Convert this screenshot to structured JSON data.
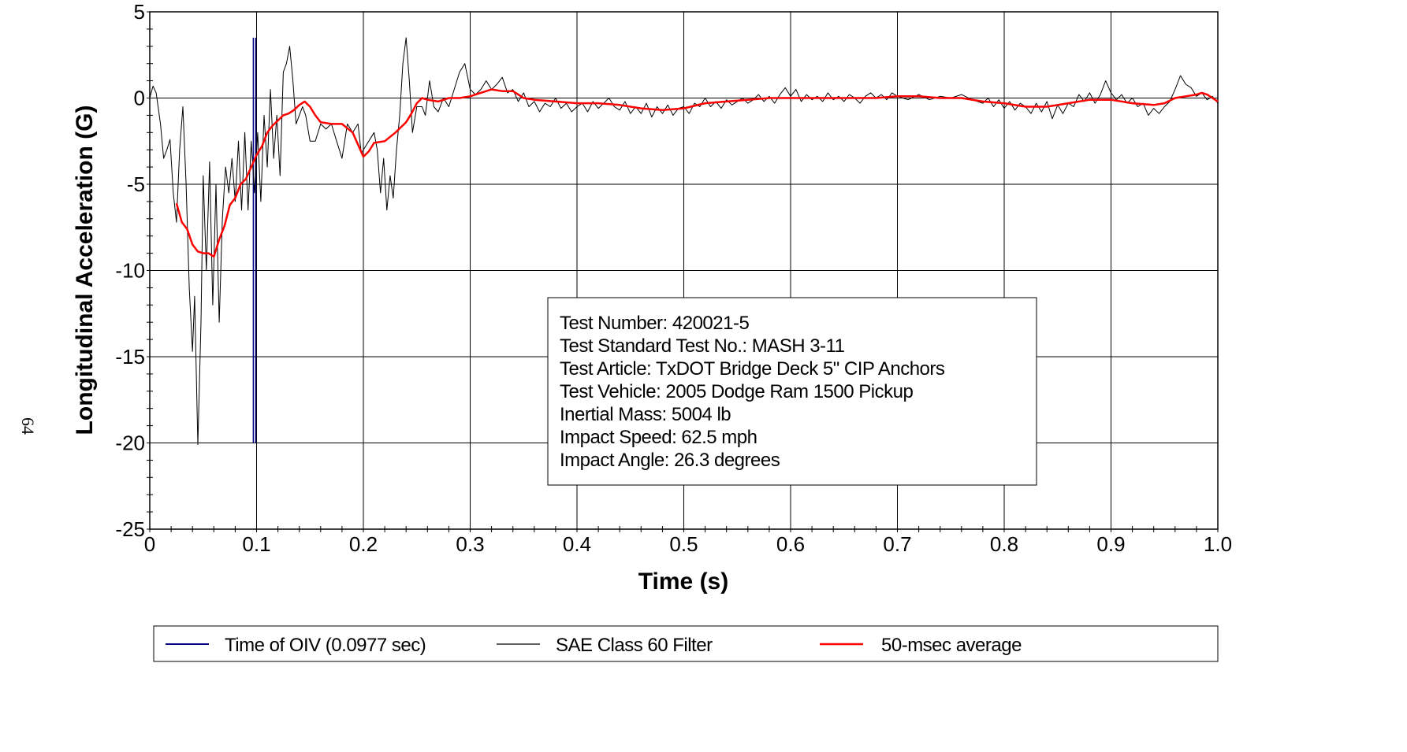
{
  "page_number": "64",
  "chart_data": {
    "type": "line",
    "xlabel": "Time (s)",
    "ylabel": "Longitudinal Acceleration (G)",
    "xlim": [
      0,
      1.0
    ],
    "ylim": [
      -25,
      5
    ],
    "x_ticks": [
      "0",
      "0.1",
      "0.2",
      "0.3",
      "0.4",
      "0.5",
      "0.6",
      "0.7",
      "0.8",
      "0.9",
      "1.0"
    ],
    "y_ticks": [
      "5",
      "0",
      "-5",
      "-10",
      "-15",
      "-20",
      "-25"
    ],
    "grid": true,
    "legend_position": "bottom",
    "series": [
      {
        "name": "Time of OIV (0.0977 sec)",
        "color": "#000080",
        "kind": "vertical-marker",
        "x": 0.0977,
        "y_range": [
          -20,
          3.5
        ]
      },
      {
        "name": "SAE Class 60 Filter",
        "color": "#000000",
        "points": [
          [
            0,
            0
          ],
          [
            0.003,
            0.7
          ],
          [
            0.006,
            0.3
          ],
          [
            0.01,
            -1.5
          ],
          [
            0.013,
            -3.5
          ],
          [
            0.016,
            -3.0
          ],
          [
            0.019,
            -2.4
          ],
          [
            0.022,
            -5.5
          ],
          [
            0.025,
            -7.2
          ],
          [
            0.028,
            -3
          ],
          [
            0.031,
            -0.5
          ],
          [
            0.034,
            -5
          ],
          [
            0.037,
            -11
          ],
          [
            0.04,
            -14.7
          ],
          [
            0.042,
            -11.5
          ],
          [
            0.045,
            -20.1
          ],
          [
            0.048,
            -13
          ],
          [
            0.05,
            -4.5
          ],
          [
            0.053,
            -10
          ],
          [
            0.056,
            -3.7
          ],
          [
            0.059,
            -12
          ],
          [
            0.062,
            -5
          ],
          [
            0.065,
            -13
          ],
          [
            0.068,
            -7
          ],
          [
            0.071,
            -4
          ],
          [
            0.074,
            -5.5
          ],
          [
            0.077,
            -3.5
          ],
          [
            0.08,
            -6
          ],
          [
            0.083,
            -2.5
          ],
          [
            0.086,
            -6.5
          ],
          [
            0.089,
            -2
          ],
          [
            0.092,
            -6.5
          ],
          [
            0.095,
            -2.5
          ],
          [
            0.098,
            -5.5
          ],
          [
            0.101,
            -2
          ],
          [
            0.104,
            -6
          ],
          [
            0.107,
            -1
          ],
          [
            0.11,
            -4
          ],
          [
            0.113,
            0.5
          ],
          [
            0.116,
            -3.5
          ],
          [
            0.119,
            -1
          ],
          [
            0.122,
            -4.5
          ],
          [
            0.125,
            1.5
          ],
          [
            0.128,
            2
          ],
          [
            0.131,
            3
          ],
          [
            0.134,
            1
          ],
          [
            0.137,
            -1.5
          ],
          [
            0.14,
            -1
          ],
          [
            0.143,
            -0.5
          ],
          [
            0.146,
            -1
          ],
          [
            0.15,
            -2.5
          ],
          [
            0.155,
            -2.5
          ],
          [
            0.16,
            -1.5
          ],
          [
            0.165,
            -1.8
          ],
          [
            0.17,
            -1.5
          ],
          [
            0.175,
            -2.5
          ],
          [
            0.18,
            -3.5
          ],
          [
            0.185,
            -1.5
          ],
          [
            0.19,
            -2
          ],
          [
            0.195,
            -1.5
          ],
          [
            0.198,
            -3.2
          ],
          [
            0.2,
            -3
          ],
          [
            0.205,
            -2.5
          ],
          [
            0.21,
            -2
          ],
          [
            0.213,
            -3
          ],
          [
            0.216,
            -5.5
          ],
          [
            0.219,
            -3.5
          ],
          [
            0.222,
            -6.5
          ],
          [
            0.225,
            -4.5
          ],
          [
            0.228,
            -5.8
          ],
          [
            0.231,
            -3
          ],
          [
            0.234,
            -1
          ],
          [
            0.237,
            2
          ],
          [
            0.24,
            3.5
          ],
          [
            0.243,
            1
          ],
          [
            0.246,
            -2
          ],
          [
            0.25,
            -0.5
          ],
          [
            0.255,
            -0.5
          ],
          [
            0.258,
            -1
          ],
          [
            0.262,
            1
          ],
          [
            0.266,
            -0.5
          ],
          [
            0.27,
            -0.8
          ],
          [
            0.275,
            0
          ],
          [
            0.28,
            -0.5
          ],
          [
            0.285,
            0.5
          ],
          [
            0.29,
            1.5
          ],
          [
            0.295,
            2
          ],
          [
            0.3,
            0.5
          ],
          [
            0.305,
            0.2
          ],
          [
            0.31,
            0.5
          ],
          [
            0.315,
            1
          ],
          [
            0.32,
            0.5
          ],
          [
            0.325,
            0.8
          ],
          [
            0.33,
            1.2
          ],
          [
            0.335,
            0.3
          ],
          [
            0.34,
            0.5
          ],
          [
            0.345,
            -0.2
          ],
          [
            0.35,
            0.3
          ],
          [
            0.355,
            -0.5
          ],
          [
            0.36,
            -0.2
          ],
          [
            0.365,
            -0.8
          ],
          [
            0.37,
            -0.3
          ],
          [
            0.375,
            -0.5
          ],
          [
            0.38,
            0
          ],
          [
            0.385,
            -0.6
          ],
          [
            0.39,
            -0.3
          ],
          [
            0.395,
            -0.8
          ],
          [
            0.4,
            -0.5
          ],
          [
            0.405,
            -0.3
          ],
          [
            0.41,
            -0.8
          ],
          [
            0.415,
            -0.2
          ],
          [
            0.42,
            -0.6
          ],
          [
            0.425,
            -0.3
          ],
          [
            0.43,
            0
          ],
          [
            0.435,
            -0.5
          ],
          [
            0.44,
            -0.7
          ],
          [
            0.445,
            -0.2
          ],
          [
            0.45,
            -0.9
          ],
          [
            0.455,
            -0.5
          ],
          [
            0.46,
            -0.9
          ],
          [
            0.465,
            -0.3
          ],
          [
            0.47,
            -1.1
          ],
          [
            0.475,
            -0.5
          ],
          [
            0.48,
            -0.9
          ],
          [
            0.485,
            -0.4
          ],
          [
            0.49,
            -1
          ],
          [
            0.495,
            -0.6
          ],
          [
            0.5,
            -0.5
          ],
          [
            0.505,
            -0.9
          ],
          [
            0.51,
            -0.3
          ],
          [
            0.515,
            -0.5
          ],
          [
            0.52,
            0
          ],
          [
            0.525,
            -0.5
          ],
          [
            0.53,
            -0.2
          ],
          [
            0.535,
            -0.6
          ],
          [
            0.54,
            -0.1
          ],
          [
            0.545,
            -0.4
          ],
          [
            0.55,
            -0.2
          ],
          [
            0.555,
            0
          ],
          [
            0.56,
            -0.3
          ],
          [
            0.565,
            -0.1
          ],
          [
            0.57,
            0.2
          ],
          [
            0.575,
            -0.2
          ],
          [
            0.58,
            0.1
          ],
          [
            0.585,
            -0.3
          ],
          [
            0.59,
            0.2
          ],
          [
            0.595,
            0.6
          ],
          [
            0.6,
            0.1
          ],
          [
            0.605,
            0.5
          ],
          [
            0.61,
            -0.2
          ],
          [
            0.615,
            0.2
          ],
          [
            0.62,
            -0.1
          ],
          [
            0.625,
            0.1
          ],
          [
            0.63,
            -0.2
          ],
          [
            0.635,
            0.3
          ],
          [
            0.64,
            -0.1
          ],
          [
            0.645,
            0.1
          ],
          [
            0.65,
            -0.2
          ],
          [
            0.655,
            0.2
          ],
          [
            0.66,
            0
          ],
          [
            0.665,
            -0.3
          ],
          [
            0.67,
            0.1
          ],
          [
            0.675,
            0.3
          ],
          [
            0.68,
            0
          ],
          [
            0.685,
            0.2
          ],
          [
            0.69,
            -0.1
          ],
          [
            0.695,
            0.3
          ],
          [
            0.7,
            0.1
          ],
          [
            0.71,
            -0.1
          ],
          [
            0.72,
            0.2
          ],
          [
            0.73,
            -0.1
          ],
          [
            0.74,
            0.1
          ],
          [
            0.75,
            0
          ],
          [
            0.76,
            0.2
          ],
          [
            0.77,
            -0.1
          ],
          [
            0.78,
            -0.3
          ],
          [
            0.785,
            0
          ],
          [
            0.79,
            -0.5
          ],
          [
            0.795,
            -0.1
          ],
          [
            0.8,
            -0.6
          ],
          [
            0.805,
            -0.2
          ],
          [
            0.81,
            -0.7
          ],
          [
            0.815,
            -0.3
          ],
          [
            0.82,
            -0.5
          ],
          [
            0.825,
            -0.9
          ],
          [
            0.83,
            -0.3
          ],
          [
            0.835,
            -0.8
          ],
          [
            0.84,
            -0.2
          ],
          [
            0.845,
            -1.2
          ],
          [
            0.85,
            -0.4
          ],
          [
            0.855,
            -0.9
          ],
          [
            0.86,
            -0.3
          ],
          [
            0.865,
            -0.5
          ],
          [
            0.87,
            0.2
          ],
          [
            0.875,
            -0.2
          ],
          [
            0.88,
            0.3
          ],
          [
            0.885,
            -0.3
          ],
          [
            0.89,
            0.2
          ],
          [
            0.895,
            1
          ],
          [
            0.9,
            0.3
          ],
          [
            0.905,
            -0.1
          ],
          [
            0.91,
            0.2
          ],
          [
            0.915,
            -0.3
          ],
          [
            0.92,
            0
          ],
          [
            0.925,
            -0.5
          ],
          [
            0.93,
            -0.3
          ],
          [
            0.935,
            -1
          ],
          [
            0.94,
            -0.6
          ],
          [
            0.945,
            -0.9
          ],
          [
            0.95,
            -0.5
          ],
          [
            0.955,
            -0.2
          ],
          [
            0.96,
            0.5
          ],
          [
            0.965,
            1.3
          ],
          [
            0.97,
            0.8
          ],
          [
            0.975,
            0.6
          ],
          [
            0.98,
            0.1
          ],
          [
            0.985,
            0.3
          ],
          [
            0.99,
            -0.1
          ],
          [
            0.995,
            0.1
          ],
          [
            1.0,
            -0.3
          ]
        ]
      },
      {
        "name": "50-msec average",
        "color": "#ff0000",
        "points": [
          [
            0.025,
            -6.1
          ],
          [
            0.03,
            -7.2
          ],
          [
            0.035,
            -7.6
          ],
          [
            0.04,
            -8.5
          ],
          [
            0.045,
            -8.9
          ],
          [
            0.05,
            -9.0
          ],
          [
            0.055,
            -9.0
          ],
          [
            0.06,
            -9.2
          ],
          [
            0.065,
            -8.2
          ],
          [
            0.07,
            -7.4
          ],
          [
            0.075,
            -6.2
          ],
          [
            0.08,
            -5.8
          ],
          [
            0.085,
            -5.0
          ],
          [
            0.09,
            -4.7
          ],
          [
            0.095,
            -4.0
          ],
          [
            0.1,
            -3.3
          ],
          [
            0.105,
            -2.8
          ],
          [
            0.11,
            -2.0
          ],
          [
            0.115,
            -1.6
          ],
          [
            0.12,
            -1.3
          ],
          [
            0.125,
            -1.0
          ],
          [
            0.13,
            -0.9
          ],
          [
            0.135,
            -0.7
          ],
          [
            0.14,
            -0.4
          ],
          [
            0.145,
            -0.2
          ],
          [
            0.15,
            -0.5
          ],
          [
            0.155,
            -1.0
          ],
          [
            0.16,
            -1.4
          ],
          [
            0.17,
            -1.5
          ],
          [
            0.18,
            -1.5
          ],
          [
            0.19,
            -2.0
          ],
          [
            0.195,
            -2.7
          ],
          [
            0.2,
            -3.4
          ],
          [
            0.205,
            -3.1
          ],
          [
            0.21,
            -2.6
          ],
          [
            0.22,
            -2.5
          ],
          [
            0.23,
            -2.0
          ],
          [
            0.24,
            -1.4
          ],
          [
            0.245,
            -0.9
          ],
          [
            0.25,
            -0.3
          ],
          [
            0.255,
            0
          ],
          [
            0.26,
            -0.1
          ],
          [
            0.27,
            -0.2
          ],
          [
            0.28,
            0
          ],
          [
            0.29,
            0
          ],
          [
            0.3,
            0.1
          ],
          [
            0.31,
            0.3
          ],
          [
            0.32,
            0.5
          ],
          [
            0.33,
            0.4
          ],
          [
            0.34,
            0.4
          ],
          [
            0.345,
            0.2
          ],
          [
            0.35,
            0
          ],
          [
            0.36,
            -0.1
          ],
          [
            0.38,
            -0.2
          ],
          [
            0.4,
            -0.3
          ],
          [
            0.42,
            -0.3
          ],
          [
            0.44,
            -0.4
          ],
          [
            0.46,
            -0.6
          ],
          [
            0.48,
            -0.7
          ],
          [
            0.5,
            -0.6
          ],
          [
            0.52,
            -0.3
          ],
          [
            0.54,
            -0.2
          ],
          [
            0.56,
            -0.1
          ],
          [
            0.58,
            0
          ],
          [
            0.6,
            0
          ],
          [
            0.62,
            0
          ],
          [
            0.64,
            0
          ],
          [
            0.66,
            0
          ],
          [
            0.68,
            0
          ],
          [
            0.7,
            0.1
          ],
          [
            0.72,
            0.1
          ],
          [
            0.74,
            0
          ],
          [
            0.76,
            0
          ],
          [
            0.78,
            -0.2
          ],
          [
            0.8,
            -0.3
          ],
          [
            0.82,
            -0.5
          ],
          [
            0.84,
            -0.5
          ],
          [
            0.86,
            -0.3
          ],
          [
            0.88,
            -0.1
          ],
          [
            0.9,
            -0.1
          ],
          [
            0.92,
            -0.3
          ],
          [
            0.94,
            -0.4
          ],
          [
            0.95,
            -0.3
          ],
          [
            0.96,
            0
          ],
          [
            0.97,
            0.1
          ],
          [
            0.98,
            0.2
          ],
          [
            0.985,
            0.3
          ],
          [
            0.99,
            0.2
          ],
          [
            1.0,
            -0.2
          ]
        ]
      }
    ],
    "info_box": [
      "Test Number: 420021-5",
      "Test Standard Test No.: MASH 3-11",
      "Test Article: TxDOT Bridge Deck 5\" CIP Anchors",
      "Test Vehicle: 2005 Dodge Ram 1500 Pickup",
      "Inertial Mass: 5004 lb",
      "Impact Speed: 62.5 mph",
      "Impact Angle: 26.3 degrees"
    ]
  }
}
